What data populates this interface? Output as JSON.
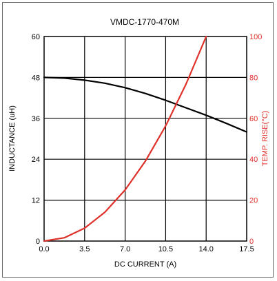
{
  "chart_data": {
    "type": "line",
    "title": "VMDC-1770-470M",
    "xlabel": "DC CURRENT (A)",
    "ylabel_left": "INDUCTANCE (uH)",
    "ylabel_right": "TEMP. RISE(°C)",
    "xlim": [
      0,
      17.5
    ],
    "ylim_left": [
      0,
      60
    ],
    "ylim_right": [
      0,
      100
    ],
    "x_ticks": [
      "0.0",
      "3.5",
      "7.0",
      "10.5",
      "14.0",
      "17.5"
    ],
    "y_left_ticks": [
      "0",
      "12",
      "24",
      "36",
      "48",
      "60"
    ],
    "y_right_ticks": [
      "0",
      "20",
      "40",
      "60",
      "80",
      "100"
    ],
    "grid": true,
    "series": [
      {
        "axis": "left",
        "color": "#000000",
        "x": [
          0,
          1.75,
          3.5,
          5.25,
          7.0,
          8.75,
          10.5,
          12.25,
          14.0,
          15.75,
          17.5
        ],
        "y": [
          48,
          47.8,
          47.2,
          46.3,
          45.0,
          43.3,
          41.3,
          39.1,
          36.9,
          34.5,
          32.0
        ]
      },
      {
        "axis": "right",
        "color": "#e0302a",
        "x": [
          0,
          1.75,
          3.5,
          5.25,
          7.0,
          8.75,
          10.5,
          12.25,
          14.0
        ],
        "y": [
          0,
          1.6,
          6.3,
          14.1,
          25.0,
          39.1,
          56.3,
          76.6,
          100
        ]
      }
    ]
  }
}
